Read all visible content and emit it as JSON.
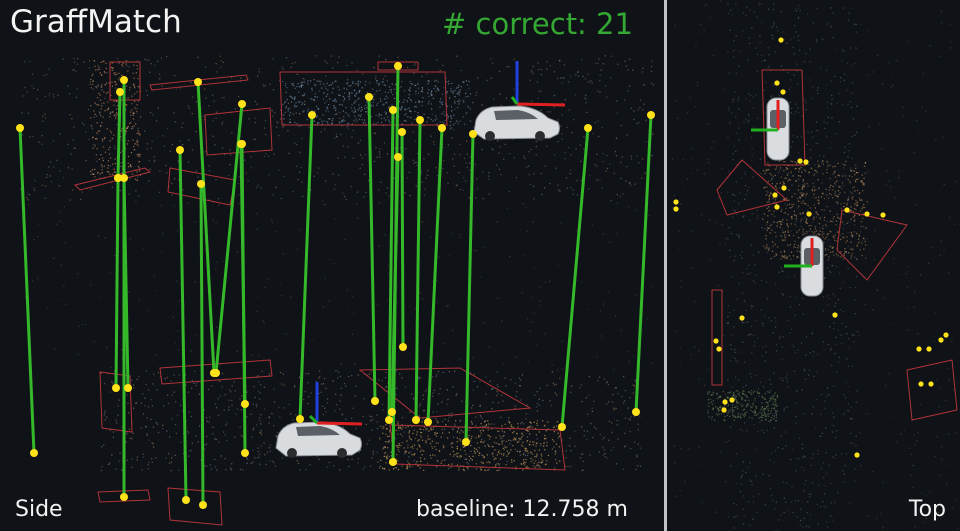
{
  "app": {
    "title": "GraffMatch"
  },
  "stats": {
    "correct_label": "# correct: 21",
    "baseline_label": "baseline: 12.758 m"
  },
  "views": {
    "side": "Side",
    "top": "Top"
  },
  "colors": {
    "match_line": "#35b82a",
    "landmark": "#ffe21a",
    "plane_outline": "#b0343a",
    "axis_x": "#e02020",
    "axis_y": "#20b020",
    "axis_z": "#2040e0"
  }
}
